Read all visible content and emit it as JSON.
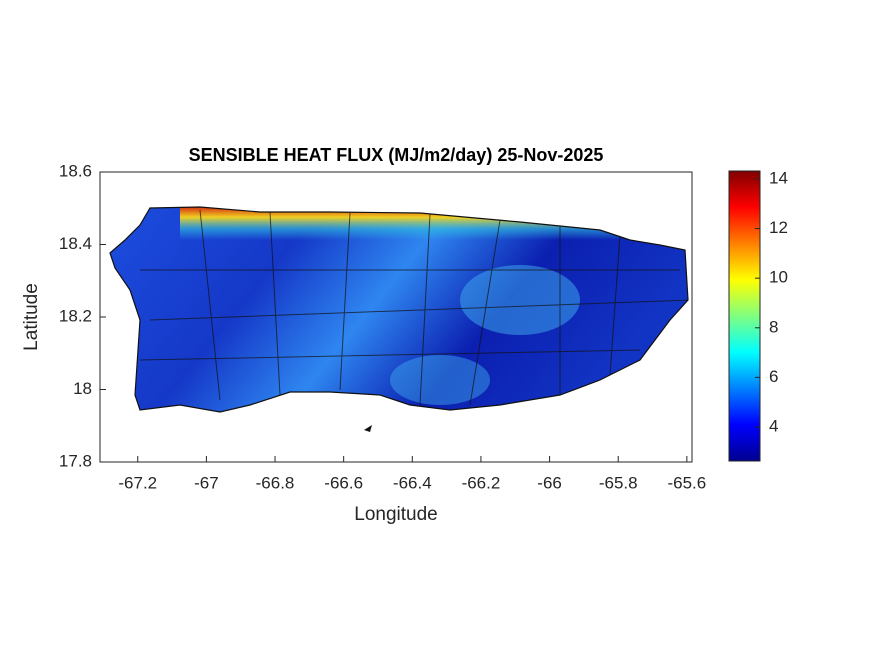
{
  "chart_data": {
    "type": "map",
    "title": "SENSIBLE HEAT FLUX (MJ/m2/day) 25-Nov-2025",
    "xlabel": "Longitude",
    "ylabel": "Latitude",
    "xlim": [
      -67.31,
      -65.585
    ],
    "ylim": [
      17.8,
      18.6
    ],
    "xticks": [
      -67.2,
      -67,
      -66.8,
      -66.6,
      -66.4,
      -66.2,
      -66,
      -65.8,
      -65.6
    ],
    "yticks": [
      17.8,
      18,
      18.2,
      18.4,
      18.6
    ],
    "colormap": "jet",
    "colorbar": {
      "clim": [
        2.63,
        14.32
      ],
      "ticks": [
        4,
        6,
        8,
        10,
        12,
        14
      ]
    }
  }
}
